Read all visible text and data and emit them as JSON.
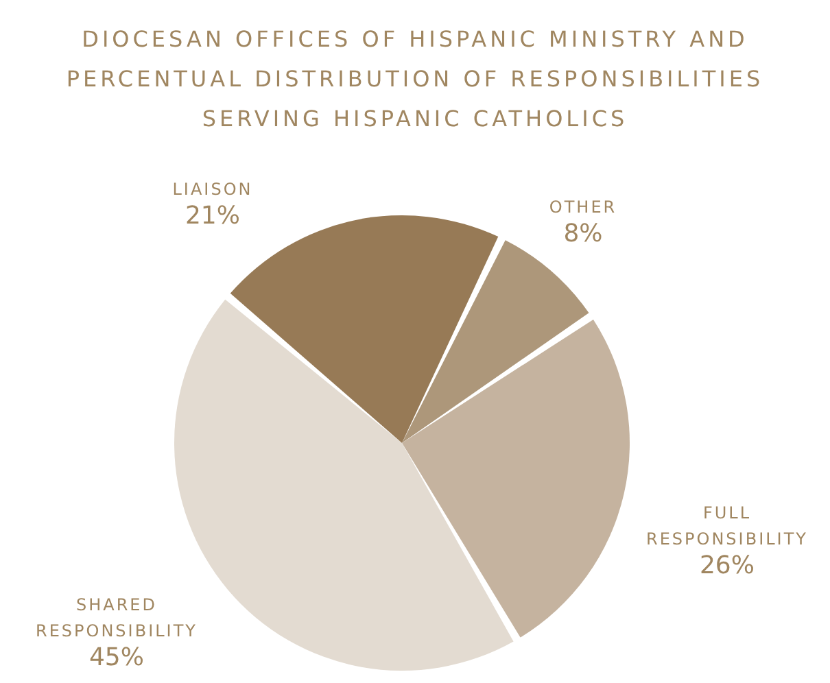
{
  "chart_data": {
    "type": "pie",
    "title": "DIOCESAN OFFICES OF HISPANIC MINISTRY AND PERCENTUAL DISTRIBUTION OF RESPONSIBILITIES SERVING HISPANIC CATHOLICS",
    "categories": [
      "OTHER",
      "FULL RESPONSIBILITY",
      "SHARED RESPONSIBILITY",
      "LIAISON"
    ],
    "values": [
      8,
      26,
      45,
      21
    ],
    "value_labels": [
      "8%",
      "26%",
      "45%",
      "21%"
    ],
    "colors": [
      "#ad977a",
      "#c5b39f",
      "#e3dbd1",
      "#977a56"
    ],
    "legend": false
  }
}
